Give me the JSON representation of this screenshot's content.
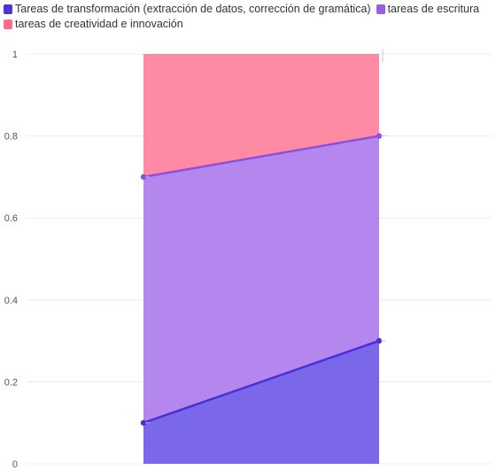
{
  "chart_data": {
    "type": "area",
    "stacked": true,
    "x": [
      0,
      1
    ],
    "series": [
      {
        "name": "Tareas de transformación (extracción de datos, corrección de gramática)",
        "values": [
          0.1,
          0.3
        ],
        "color": "#5b3fe0"
      },
      {
        "name": "tareas de escritura",
        "values": [
          0.7,
          0.8
        ],
        "color": "#9b5de5"
      },
      {
        "name": "tareas de creatividad e innovación",
        "values": [
          1.0,
          1.0
        ],
        "color": "#ff6b86"
      }
    ],
    "ylim": [
      0,
      1
    ],
    "yticks": [
      "0",
      "0.2",
      "0.4",
      "0.6",
      "0.8",
      "1"
    ],
    "grid": true,
    "legend_position": "top-left"
  }
}
